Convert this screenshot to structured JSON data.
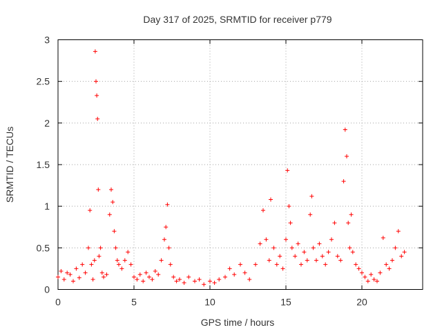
{
  "chart_data": {
    "type": "scatter",
    "title": "Day 317 of 2025, SRMTID for receiver p779",
    "xlabel": "GPS time / hours",
    "ylabel": "SRMTID / TECUs",
    "xlim": [
      0,
      24
    ],
    "ylim": [
      0,
      3
    ],
    "xticks": [
      0,
      5,
      10,
      15,
      20
    ],
    "xtick_labels": [
      "0",
      "5",
      "10",
      "15",
      "20"
    ],
    "yticks": [
      0,
      0.5,
      1,
      1.5,
      2,
      2.5,
      3
    ],
    "ytick_labels": [
      "0",
      "0.5",
      "1",
      "1.5",
      "2",
      "2.5",
      "3"
    ],
    "grid": true,
    "marker": "+",
    "series": [
      {
        "name": "SRMTID",
        "color": "#ff0000",
        "x": [
          0.0,
          0.2,
          0.4,
          0.6,
          0.8,
          1.0,
          1.2,
          1.4,
          1.6,
          1.8,
          2.0,
          2.1,
          2.2,
          2.3,
          2.4,
          2.45,
          2.5,
          2.55,
          2.6,
          2.65,
          2.7,
          2.8,
          2.9,
          3.0,
          3.2,
          3.4,
          3.5,
          3.6,
          3.7,
          3.8,
          3.9,
          4.0,
          4.2,
          4.4,
          4.6,
          4.8,
          5.0,
          5.2,
          5.4,
          5.6,
          5.8,
          6.0,
          6.2,
          6.4,
          6.6,
          6.8,
          7.0,
          7.1,
          7.2,
          7.3,
          7.4,
          7.6,
          7.8,
          8.0,
          8.3,
          8.6,
          9.0,
          9.3,
          9.6,
          10.0,
          10.3,
          10.6,
          11.0,
          11.3,
          11.6,
          12.0,
          12.3,
          12.6,
          13.0,
          13.3,
          13.5,
          13.7,
          13.9,
          14.0,
          14.2,
          14.4,
          14.6,
          14.8,
          15.0,
          15.1,
          15.2,
          15.3,
          15.4,
          15.6,
          15.8,
          16.0,
          16.2,
          16.4,
          16.6,
          16.7,
          16.8,
          17.0,
          17.2,
          17.4,
          17.6,
          17.8,
          18.0,
          18.2,
          18.4,
          18.6,
          18.8,
          18.9,
          19.0,
          19.1,
          19.2,
          19.3,
          19.4,
          19.6,
          19.8,
          20.0,
          20.2,
          20.4,
          20.6,
          20.8,
          21.0,
          21.2,
          21.4,
          21.6,
          21.8,
          22.0,
          22.2,
          22.4,
          22.6,
          22.8
        ],
        "y": [
          0.15,
          0.22,
          0.12,
          0.2,
          0.18,
          0.1,
          0.25,
          0.14,
          0.3,
          0.2,
          0.5,
          0.95,
          0.3,
          0.12,
          0.35,
          2.86,
          2.5,
          2.33,
          2.05,
          1.2,
          0.4,
          0.5,
          0.2,
          0.15,
          0.18,
          0.9,
          1.2,
          1.05,
          0.7,
          0.5,
          0.35,
          0.3,
          0.25,
          0.35,
          0.45,
          0.3,
          0.15,
          0.12,
          0.18,
          0.1,
          0.2,
          0.15,
          0.12,
          0.22,
          0.18,
          0.35,
          0.6,
          0.75,
          1.02,
          0.5,
          0.3,
          0.15,
          0.1,
          0.12,
          0.08,
          0.15,
          0.1,
          0.12,
          0.06,
          0.1,
          0.08,
          0.12,
          0.15,
          0.25,
          0.18,
          0.3,
          0.2,
          0.12,
          0.3,
          0.55,
          0.95,
          0.6,
          0.35,
          1.08,
          0.5,
          0.3,
          0.4,
          0.25,
          0.6,
          1.43,
          1.0,
          0.8,
          0.5,
          0.4,
          0.55,
          0.3,
          0.45,
          0.35,
          0.9,
          1.12,
          0.5,
          0.35,
          0.55,
          0.4,
          0.3,
          0.45,
          0.6,
          0.8,
          0.4,
          0.35,
          1.3,
          1.92,
          1.6,
          0.8,
          0.5,
          0.9,
          0.45,
          0.3,
          0.25,
          0.2,
          0.15,
          0.1,
          0.18,
          0.12,
          0.1,
          0.2,
          0.62,
          0.3,
          0.25,
          0.35,
          0.5,
          0.7,
          0.4,
          0.45
        ]
      }
    ]
  }
}
